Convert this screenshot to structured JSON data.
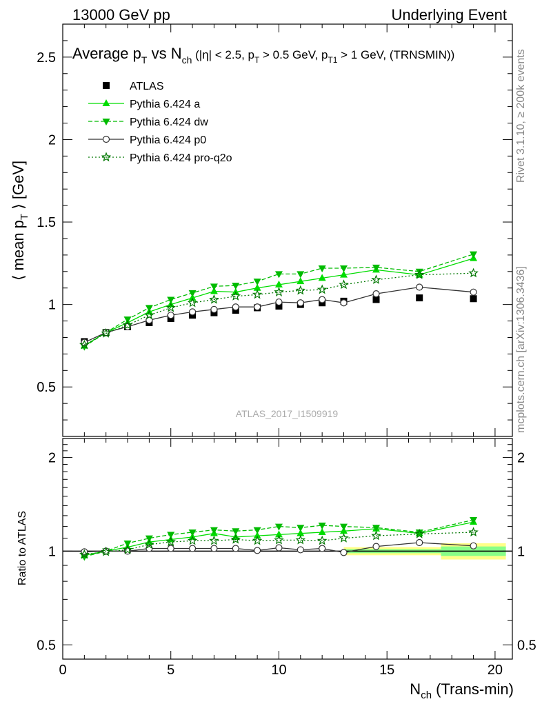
{
  "header": {
    "left": "13000 GeV pp",
    "right": "Underlying Event"
  },
  "side": {
    "rivet": "Rivet 3.1.10, ≥ 200k events",
    "mcplots": "mcplots.cern.ch [arXiv:1306.3436]"
  },
  "watermark": "ATLAS_2017_I1509919",
  "colors": {
    "atlas": "#000000",
    "pythia_a": "#00dd00",
    "pythia_dw": "#00bb00",
    "pythia_p0": "#333333",
    "pythia_proq2o": "#007700",
    "band_yellow": "#ffff88",
    "band_green": "#88ff88"
  },
  "chart_data": [
    {
      "type": "scatter",
      "title": "Average p_T vs N_ch (|η| < 2.5, p_T > 0.5 GeV, p_T1 > 1 GeV, (TRNSMIN))",
      "ylabel": "⟨ mean p_T ⟩ [GeV]",
      "ylim": [
        0.2,
        2.7
      ],
      "xlim": [
        0,
        20.8
      ],
      "yticks": [
        "0.5",
        "1",
        "1.5",
        "2",
        "2.5"
      ],
      "legend_placement": "top-left",
      "x": [
        1,
        2,
        3,
        4,
        5,
        6,
        7,
        8,
        9,
        10,
        11,
        12,
        13,
        14.5,
        16.5,
        19
      ],
      "series": [
        {
          "name": "ATLAS",
          "marker": "square",
          "line": "none",
          "values": [
            0.775,
            0.83,
            0.865,
            0.89,
            0.915,
            0.935,
            0.95,
            0.965,
            0.98,
            0.99,
            1.0,
            1.01,
            1.02,
            1.03,
            1.04,
            1.035
          ]
        },
        {
          "name": "Pythia 6.424 a",
          "marker": "triangle-up",
          "line": "solid",
          "values": [
            0.75,
            0.83,
            0.89,
            0.955,
            1.0,
            1.04,
            1.08,
            1.075,
            1.1,
            1.12,
            1.14,
            1.16,
            1.18,
            1.21,
            1.18,
            1.28
          ]
        },
        {
          "name": "Pythia 6.424 dw",
          "marker": "triangle-down",
          "line": "dashed",
          "values": [
            0.745,
            0.83,
            0.91,
            0.98,
            1.03,
            1.07,
            1.11,
            1.115,
            1.14,
            1.185,
            1.185,
            1.22,
            1.22,
            1.225,
            1.2,
            1.305
          ]
        },
        {
          "name": "Pythia 6.424 p0",
          "marker": "circle-open",
          "line": "solid",
          "values": [
            0.77,
            0.83,
            0.865,
            0.905,
            0.935,
            0.955,
            0.97,
            0.985,
            0.985,
            1.015,
            1.01,
            1.03,
            1.01,
            1.065,
            1.105,
            1.075
          ]
        },
        {
          "name": "Pythia 6.424 pro-q2o",
          "marker": "star-open",
          "line": "dotted",
          "values": [
            0.755,
            0.825,
            0.875,
            0.935,
            0.98,
            1.01,
            1.03,
            1.05,
            1.06,
            1.075,
            1.085,
            1.09,
            1.12,
            1.15,
            1.18,
            1.19
          ]
        }
      ]
    },
    {
      "type": "scatter",
      "ylabel": "Ratio to ATLAS",
      "xlabel": "N_ch (Trans-min)",
      "ylim": [
        0.45,
        2.3
      ],
      "xlim": [
        0,
        20.8
      ],
      "yticks": [
        "0.5",
        "1",
        "2"
      ],
      "xticks": [
        "0",
        "5",
        "10",
        "15",
        "20"
      ],
      "x": [
        1,
        2,
        3,
        4,
        5,
        6,
        7,
        8,
        9,
        10,
        11,
        12,
        13,
        14.5,
        16.5,
        19
      ],
      "series": [
        {
          "name": "Pythia 6.424 a",
          "values": [
            0.97,
            1.0,
            1.03,
            1.07,
            1.09,
            1.11,
            1.14,
            1.11,
            1.12,
            1.13,
            1.14,
            1.15,
            1.16,
            1.18,
            1.14,
            1.24
          ]
        },
        {
          "name": "Pythia 6.424 dw",
          "values": [
            0.96,
            1.0,
            1.06,
            1.1,
            1.13,
            1.15,
            1.17,
            1.16,
            1.17,
            1.2,
            1.19,
            1.21,
            1.2,
            1.19,
            1.15,
            1.26
          ]
        },
        {
          "name": "Pythia 6.424 p0",
          "values": [
            0.995,
            1.0,
            1.0,
            1.02,
            1.02,
            1.02,
            1.02,
            1.02,
            1.005,
            1.025,
            1.01,
            1.02,
            0.99,
            1.035,
            1.065,
            1.04
          ]
        },
        {
          "name": "Pythia 6.424 pro-q2o",
          "values": [
            0.975,
            0.995,
            1.01,
            1.05,
            1.07,
            1.08,
            1.08,
            1.09,
            1.08,
            1.085,
            1.085,
            1.08,
            1.1,
            1.12,
            1.135,
            1.15
          ]
        }
      ],
      "uncertainty_bands": [
        {
          "x": [
            13.0,
            17.5
          ],
          "yellow": [
            0.97,
            1.03
          ],
          "green": [
            0.985,
            1.015
          ]
        },
        {
          "x": [
            17.5,
            20.5
          ],
          "yellow": [
            0.94,
            1.06
          ],
          "green": [
            0.965,
            1.035
          ]
        }
      ]
    }
  ]
}
